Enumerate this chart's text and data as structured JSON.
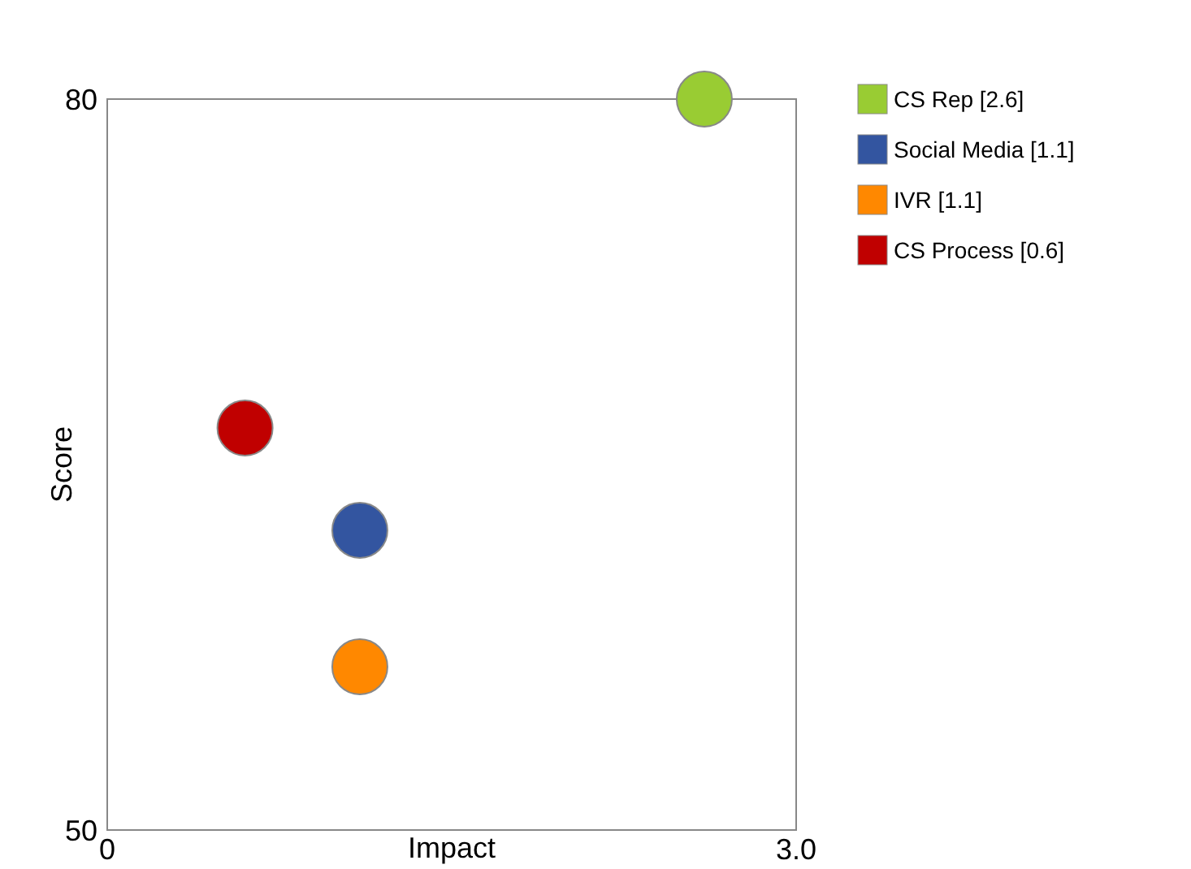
{
  "chart_data": {
    "type": "scatter",
    "xlabel": "Impact",
    "ylabel": "Score",
    "xlim": [
      0,
      3
    ],
    "ylim": [
      50,
      80
    ],
    "xticks": [
      0,
      {
        "value": 3,
        "label": "3.0"
      }
    ],
    "yticks": [
      50,
      80
    ],
    "grid": false,
    "legend": "right",
    "marker": "circle",
    "series": [
      {
        "name": "CS Rep [2.6]",
        "color": "#99cc33",
        "x": [
          2.6
        ],
        "values": [
          80
        ]
      },
      {
        "name": "Social Media [1.1]",
        "color": "#3355a0",
        "x": [
          1.1
        ],
        "values": [
          62.3
        ]
      },
      {
        "name": "IVR [1.1]",
        "color": "#ff8800",
        "x": [
          1.1
        ],
        "values": [
          56.7
        ]
      },
      {
        "name": "CS Process [0.6]",
        "color": "#c00000",
        "x": [
          0.6
        ],
        "values": [
          66.5
        ]
      }
    ]
  }
}
